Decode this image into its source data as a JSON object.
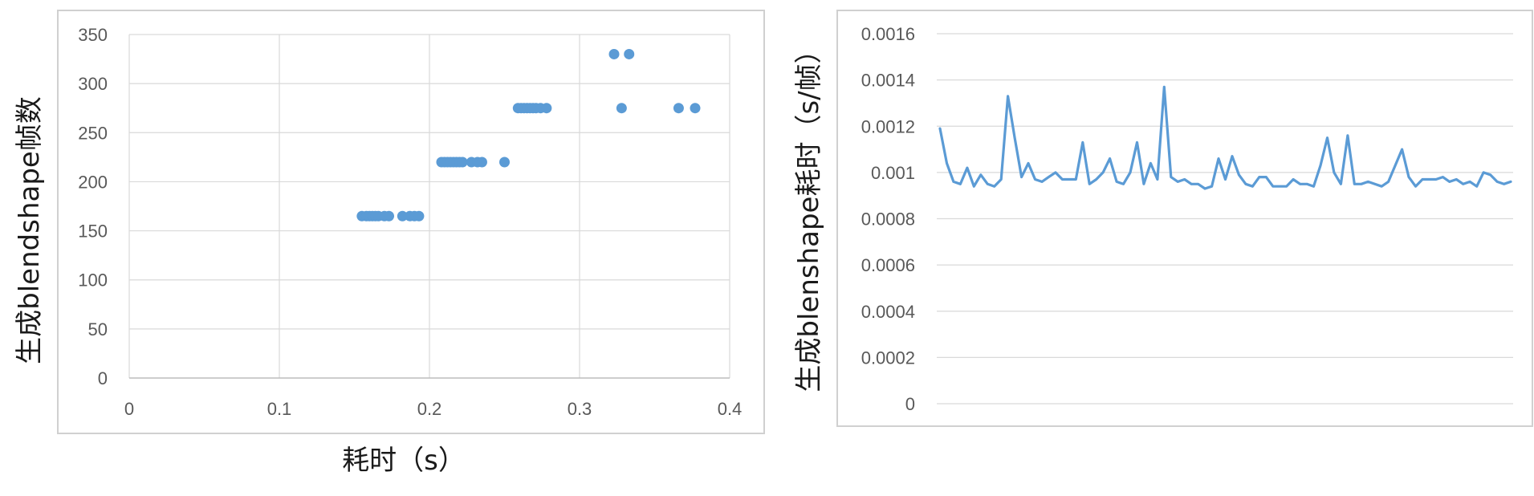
{
  "colors": {
    "series": "#5b9bd5",
    "grid": "#d9d9d9",
    "border": "#d0d0d0",
    "tick_text": "#595959"
  },
  "chart_data": [
    {
      "type": "scatter",
      "title": "",
      "xlabel": "耗时（s）",
      "ylabel": "生成blendshape帧数",
      "xlim": [
        0,
        0.4
      ],
      "ylim": [
        0,
        350
      ],
      "x_ticks": [
        "0",
        "0.1",
        "0.2",
        "0.3",
        "0.4"
      ],
      "y_ticks": [
        "0",
        "50",
        "100",
        "150",
        "200",
        "250",
        "300",
        "350"
      ],
      "grid": true,
      "legend": "none",
      "points": [
        [
          0.155,
          165
        ],
        [
          0.158,
          165
        ],
        [
          0.16,
          165
        ],
        [
          0.162,
          165
        ],
        [
          0.164,
          165
        ],
        [
          0.166,
          165
        ],
        [
          0.17,
          165
        ],
        [
          0.173,
          165
        ],
        [
          0.182,
          165
        ],
        [
          0.187,
          165
        ],
        [
          0.19,
          165
        ],
        [
          0.193,
          165
        ],
        [
          0.208,
          220
        ],
        [
          0.21,
          220
        ],
        [
          0.212,
          220
        ],
        [
          0.214,
          220
        ],
        [
          0.216,
          220
        ],
        [
          0.218,
          220
        ],
        [
          0.22,
          220
        ],
        [
          0.222,
          220
        ],
        [
          0.228,
          220
        ],
        [
          0.232,
          220
        ],
        [
          0.235,
          220
        ],
        [
          0.25,
          220
        ],
        [
          0.259,
          275
        ],
        [
          0.261,
          275
        ],
        [
          0.263,
          275
        ],
        [
          0.265,
          275
        ],
        [
          0.267,
          275
        ],
        [
          0.269,
          275
        ],
        [
          0.271,
          275
        ],
        [
          0.274,
          275
        ],
        [
          0.278,
          275
        ],
        [
          0.328,
          275
        ],
        [
          0.366,
          275
        ],
        [
          0.377,
          275
        ],
        [
          0.323,
          330
        ],
        [
          0.333,
          330
        ]
      ]
    },
    {
      "type": "line",
      "title": "",
      "xlabel": "",
      "ylabel": "生成blenshape耗时（s/帧）",
      "ylim": [
        0,
        0.0016
      ],
      "y_ticks": [
        "0",
        "0.0002",
        "0.0004",
        "0.0006",
        "0.0008",
        "0.001",
        "0.0012",
        "0.0014",
        "0.0016"
      ],
      "grid": true,
      "legend": "none",
      "values": [
        0.00119,
        0.00104,
        0.00096,
        0.00095,
        0.00102,
        0.00094,
        0.00099,
        0.00095,
        0.00094,
        0.00097,
        0.00133,
        0.00115,
        0.00098,
        0.00104,
        0.00097,
        0.00096,
        0.00098,
        0.001,
        0.00097,
        0.00097,
        0.00097,
        0.00113,
        0.00095,
        0.00097,
        0.001,
        0.00106,
        0.00096,
        0.00095,
        0.001,
        0.00113,
        0.00095,
        0.00104,
        0.00097,
        0.00137,
        0.00098,
        0.00096,
        0.00097,
        0.00095,
        0.00095,
        0.00093,
        0.00094,
        0.00106,
        0.00097,
        0.00107,
        0.00099,
        0.00095,
        0.00094,
        0.00098,
        0.00098,
        0.00094,
        0.00094,
        0.00094,
        0.00097,
        0.00095,
        0.00095,
        0.00094,
        0.00103,
        0.00115,
        0.001,
        0.00095,
        0.00116,
        0.00095,
        0.00095,
        0.00096,
        0.00095,
        0.00094,
        0.00096,
        0.00103,
        0.0011,
        0.00098,
        0.00094,
        0.00097,
        0.00097,
        0.00097,
        0.00098,
        0.00096,
        0.00097,
        0.00095,
        0.00096,
        0.00094,
        0.001,
        0.00099,
        0.00096,
        0.00095,
        0.00096
      ]
    }
  ]
}
